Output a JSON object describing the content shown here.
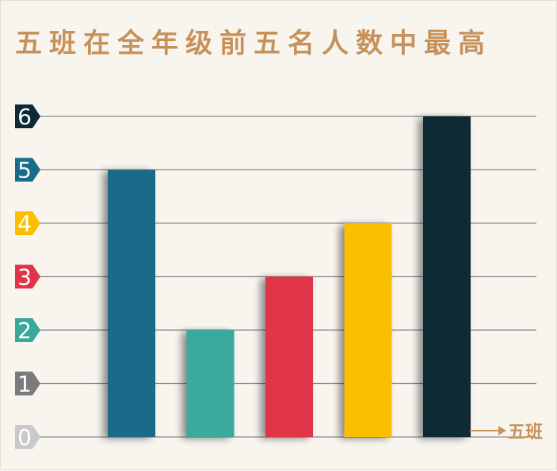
{
  "chart_data": {
    "type": "bar",
    "title": "五班在全年级前五名人数中最高",
    "categories": [
      "",
      "",
      "",
      "",
      ""
    ],
    "values": [
      5,
      2,
      3,
      4,
      6
    ],
    "ylim": [
      0,
      6
    ],
    "yticks": [
      "0",
      "1",
      "2",
      "3",
      "4",
      "5",
      "6"
    ],
    "grid": true,
    "annotation": "五班",
    "colors": {
      "bars": [
        "#1b6b8a",
        "#3aa99b",
        "#e0344a",
        "#fbbf00",
        "#0e2a36"
      ],
      "ticks": [
        "#c9c9c9",
        "#7b7b7b",
        "#3aa99b",
        "#e0344a",
        "#fbbf00",
        "#1b6b8a",
        "#0e2a36"
      ],
      "title": "#c7915a",
      "grid": "#8a8a8a",
      "background": "#f8f5ef"
    }
  }
}
